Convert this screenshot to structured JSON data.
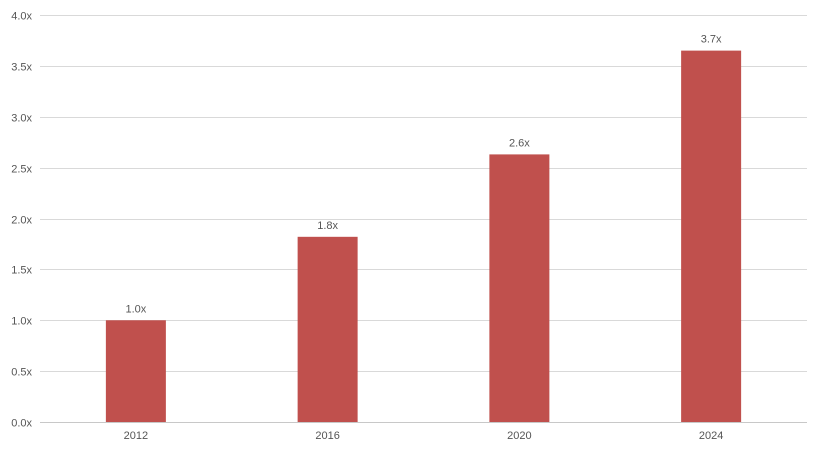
{
  "chart_data": {
    "type": "bar",
    "title": "",
    "xlabel": "",
    "ylabel": "",
    "categories": [
      "2012",
      "2016",
      "2020",
      "2024"
    ],
    "values": [
      1.0,
      1.82,
      2.63,
      3.65
    ],
    "data_labels": [
      "1.0x",
      "1.8x",
      "2.6x",
      "3.7x"
    ],
    "ylim": [
      0,
      4.0
    ],
    "y_ticks": [
      0.0,
      0.5,
      1.0,
      1.5,
      2.0,
      2.5,
      3.0,
      3.5,
      4.0
    ],
    "y_tick_labels": [
      "0.0x",
      "0.5x",
      "1.0x",
      "1.5x",
      "2.0x",
      "2.5x",
      "3.0x",
      "3.5x",
      "4.0x"
    ],
    "grid": true,
    "legend": "none",
    "bar_color": "#c0504d"
  }
}
